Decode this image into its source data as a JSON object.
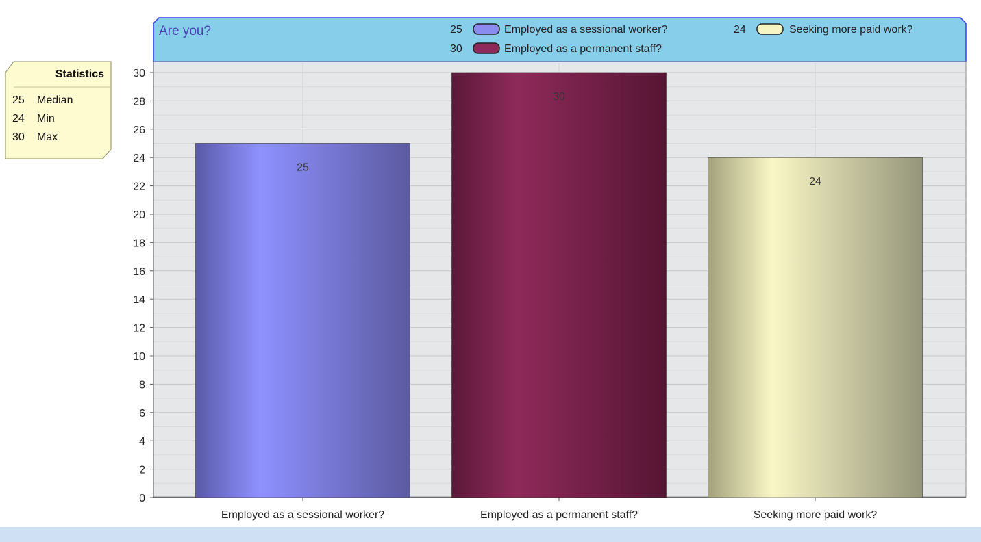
{
  "chart_data": {
    "type": "bar",
    "title": "Are you?",
    "categories": [
      "Employed as a sessional worker?",
      "Employed as a permanent staff?",
      "Seeking more paid work?"
    ],
    "values": [
      25,
      30,
      24
    ],
    "data_labels": [
      "25",
      "30",
      "24"
    ],
    "ylim": [
      0,
      30
    ],
    "yticks": [
      "0",
      "2",
      "4",
      "6",
      "8",
      "10",
      "12",
      "14",
      "16",
      "18",
      "20",
      "22",
      "24",
      "26",
      "28",
      "30"
    ],
    "xlabel": "",
    "ylabel": "",
    "grid": true,
    "legend_position": "top",
    "legend": [
      {
        "value": "25",
        "label": "Employed as a sessional worker?",
        "color": "#8a8cf0"
      },
      {
        "value": "30",
        "label": "Employed as a permanent staff?",
        "color": "#8e2a5a"
      },
      {
        "value": "24",
        "label": "Seeking more paid work?",
        "color": "#f7f5c3"
      }
    ],
    "colors": [
      "#8a8cf0",
      "#8e2a5a",
      "#f7f5c3"
    ]
  },
  "statistics": {
    "title": "Statistics",
    "rows": [
      {
        "value": "25",
        "label": "Median"
      },
      {
        "value": "24",
        "label": "Min"
      },
      {
        "value": "30",
        "label": "Max"
      }
    ]
  },
  "colors": {
    "header_bg": "#87ceeb",
    "header_border": "#3a3af0",
    "title_text": "#4a3fb0",
    "plot_bg": "#e6e7e9",
    "stats_bg": "#fffbd0"
  }
}
